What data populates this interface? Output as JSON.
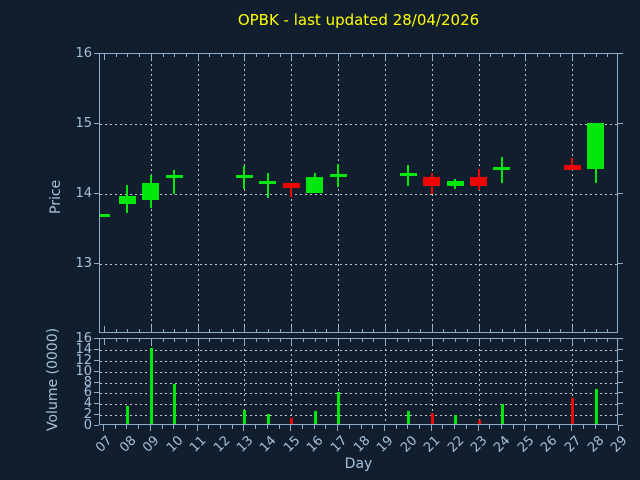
{
  "title": "OPBK - last updated 28/04/2026",
  "colors": {
    "background": "#101E2D",
    "up": "#00E80B",
    "down": "#EE0400",
    "axis_frame": "#8FAEC9",
    "tick_text": "#A5C1DB",
    "grid": "#BCC3CB",
    "title_text": "#FFFF00"
  },
  "price_axis": {
    "label": "Price",
    "tick_labels": [
      "16",
      "15",
      "14",
      "13"
    ],
    "tick_values": [
      16,
      15,
      14,
      13
    ],
    "ylim": [
      12,
      16
    ]
  },
  "volume_axis": {
    "label": "Volume (0000)",
    "tick_labels": [
      "16",
      "14",
      "12",
      "10",
      "8",
      "6",
      "4",
      "2",
      "0"
    ],
    "tick_values": [
      16,
      14,
      12,
      10,
      8,
      6,
      4,
      2,
      0
    ],
    "ylim": [
      0,
      16
    ]
  },
  "x_axis": {
    "label": "Day",
    "tick_labels": [
      "07",
      "08",
      "09",
      "10",
      "11",
      "12",
      "13",
      "14",
      "15",
      "16",
      "17",
      "18",
      "19",
      "20",
      "21",
      "22",
      "23",
      "24",
      "25",
      "26",
      "27",
      "28",
      "29"
    ],
    "first_day": 7,
    "last_day": 29
  },
  "chart_data": {
    "type": "candlestick-with-volume",
    "title": "OPBK - last updated 28/04/2026",
    "xlabel": "Day",
    "ylabel_price": "Price",
    "ylabel_volume": "Volume (0000)",
    "price_ylim": [
      12,
      16
    ],
    "volume_ylim": [
      0,
      16
    ],
    "price_gridlines": [
      13,
      14,
      15
    ],
    "volume_gridlines": [
      2,
      4,
      6,
      8,
      10,
      12,
      14
    ],
    "day_gridlines": [
      9,
      11,
      13,
      15,
      17,
      19,
      21,
      23,
      25,
      27
    ],
    "legend": "none",
    "candles": [
      {
        "day": 7,
        "label": "07",
        "open": 13.7,
        "high": 13.7,
        "low": 13.7,
        "close": 13.7,
        "volume": 0.0,
        "dir": "up"
      },
      {
        "day": 8,
        "label": "08",
        "open": 13.86,
        "high": 14.13,
        "low": 13.73,
        "close": 13.97,
        "volume": 3.6,
        "dir": "up"
      },
      {
        "day": 9,
        "label": "09",
        "open": 13.91,
        "high": 14.27,
        "low": 13.8,
        "close": 14.16,
        "volume": 14.4,
        "dir": "up"
      },
      {
        "day": 10,
        "label": "10",
        "open": 14.25,
        "high": 14.35,
        "low": 14.0,
        "close": 14.26,
        "volume": 7.7,
        "dir": "up"
      },
      {
        "day": 13,
        "label": "13",
        "open": 14.25,
        "high": 14.4,
        "low": 14.07,
        "close": 14.26,
        "volume": 2.9,
        "dir": "up"
      },
      {
        "day": 14,
        "label": "14",
        "open": 14.16,
        "high": 14.3,
        "low": 13.95,
        "close": 14.17,
        "volume": 2.2,
        "dir": "up"
      },
      {
        "day": 15,
        "label": "15",
        "open": 14.16,
        "high": 14.16,
        "low": 13.95,
        "close": 14.09,
        "volume": 1.5,
        "dir": "down"
      },
      {
        "day": 16,
        "label": "16",
        "open": 14.02,
        "high": 14.3,
        "low": 14.02,
        "close": 14.24,
        "volume": 2.7,
        "dir": "up"
      },
      {
        "day": 17,
        "label": "17",
        "open": 14.26,
        "high": 14.43,
        "low": 14.1,
        "close": 14.27,
        "volume": 6.3,
        "dir": "up"
      },
      {
        "day": 20,
        "label": "20",
        "open": 14.27,
        "high": 14.42,
        "low": 14.12,
        "close": 14.28,
        "volume": 2.7,
        "dir": "up"
      },
      {
        "day": 21,
        "label": "21",
        "open": 14.24,
        "high": 14.3,
        "low": 14.0,
        "close": 14.11,
        "volume": 2.3,
        "dir": "down"
      },
      {
        "day": 22,
        "label": "22",
        "open": 14.12,
        "high": 14.22,
        "low": 14.07,
        "close": 14.19,
        "volume": 2.0,
        "dir": "up"
      },
      {
        "day": 23,
        "label": "23",
        "open": 14.24,
        "high": 14.36,
        "low": 14.05,
        "close": 14.12,
        "volume": 1.1,
        "dir": "down"
      },
      {
        "day": 24,
        "label": "24",
        "open": 14.36,
        "high": 14.53,
        "low": 14.16,
        "close": 14.37,
        "volume": 4.0,
        "dir": "up"
      },
      {
        "day": 27,
        "label": "27",
        "open": 14.42,
        "high": 14.52,
        "low": 14.34,
        "close": 14.34,
        "volume": 5.1,
        "dir": "down"
      },
      {
        "day": 28,
        "label": "28",
        "open": 14.35,
        "high": 15.02,
        "low": 14.16,
        "close": 15.02,
        "volume": 6.8,
        "dir": "up"
      }
    ]
  }
}
